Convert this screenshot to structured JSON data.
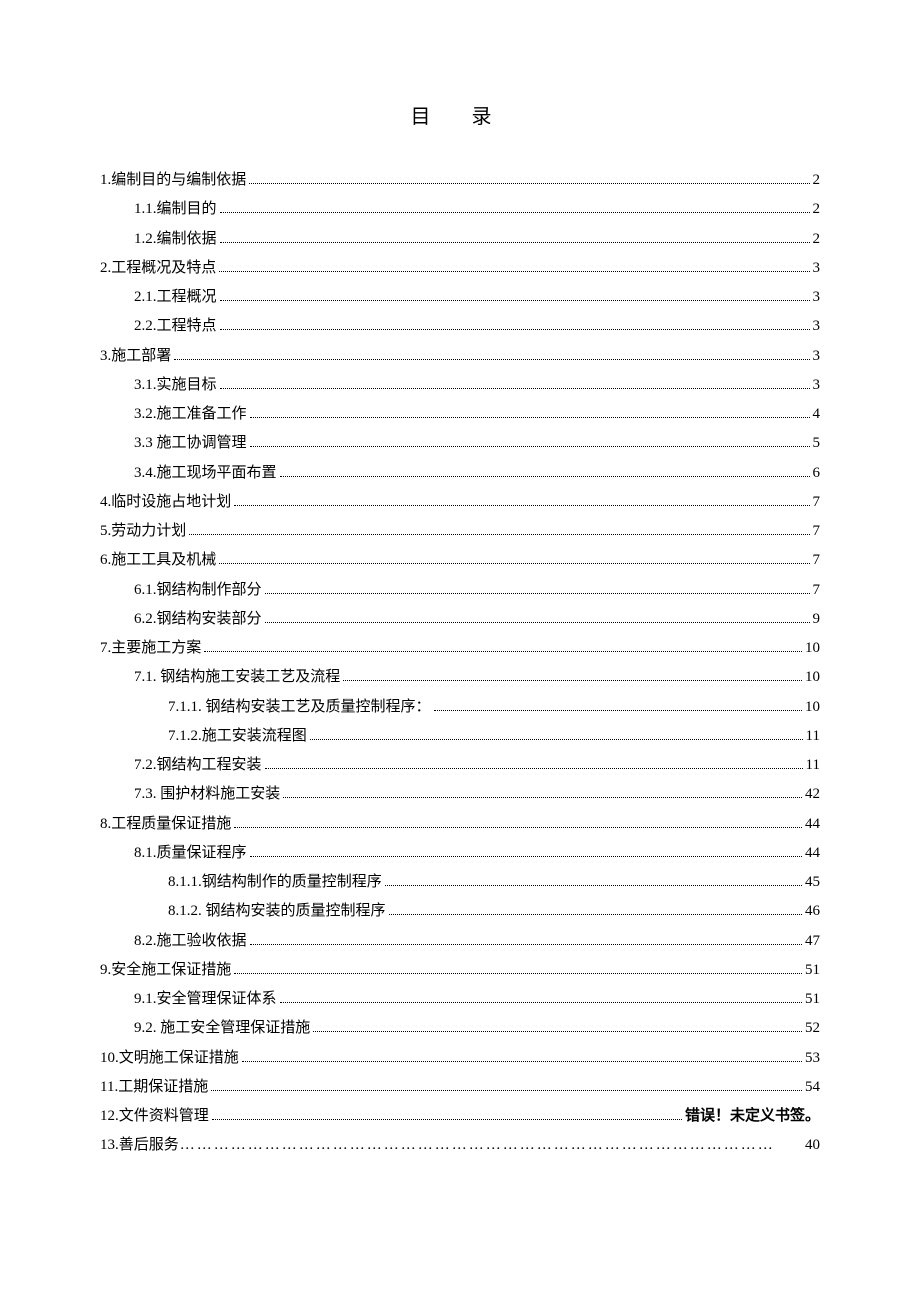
{
  "title": "目 录",
  "toc": [
    {
      "label": "1.编制目的与编制依据",
      "page": "2",
      "level": 1
    },
    {
      "label": "1.1.编制目的",
      "page": "2",
      "level": 2
    },
    {
      "label": "1.2.编制依据",
      "page": "2",
      "level": 2
    },
    {
      "label": "2.工程概况及特点",
      "page": "3",
      "level": 1
    },
    {
      "label": "2.1.工程概况",
      "page": "3",
      "level": 2
    },
    {
      "label": "2.2.工程特点",
      "page": "3",
      "level": 2
    },
    {
      "label": "3.施工部署",
      "page": "3",
      "level": 1
    },
    {
      "label": "3.1.实施目标",
      "page": "3",
      "level": 2
    },
    {
      "label": "3.2.施工准备工作",
      "page": "4",
      "level": 2
    },
    {
      "label": "3.3 施工协调管理",
      "page": "5",
      "level": 2
    },
    {
      "label": "3.4.施工现场平面布置",
      "page": "6",
      "level": 2
    },
    {
      "label": "4.临时设施占地计划",
      "page": "7",
      "level": 1
    },
    {
      "label": "5.劳动力计划",
      "page": "7",
      "level": 1
    },
    {
      "label": "6.施工工具及机械",
      "page": "7",
      "level": 1
    },
    {
      "label": "6.1.钢结构制作部分",
      "page": "7",
      "level": 2
    },
    {
      "label": "6.2.钢结构安装部分",
      "page": "9",
      "level": 2
    },
    {
      "label": "7.主要施工方案",
      "page": "10",
      "level": 1
    },
    {
      "label": "7.1.  钢结构施工安装工艺及流程",
      "page": "10",
      "level": 2
    },
    {
      "label": "7.1.1.  钢结构安装工艺及质量控制程序：",
      "page": "10",
      "level": 3
    },
    {
      "label": "7.1.2.施工安装流程图",
      "page": "11",
      "level": 3
    },
    {
      "label": "7.2.钢结构工程安装",
      "page": "11",
      "level": 2
    },
    {
      "label": "7.3.  围护材料施工安装",
      "page": "42",
      "level": 2
    },
    {
      "label": "8.工程质量保证措施",
      "page": "44",
      "level": 1
    },
    {
      "label": "8.1.质量保证程序",
      "page": "44",
      "level": 2
    },
    {
      "label": "8.1.1.钢结构制作的质量控制程序",
      "page": "45",
      "level": 3
    },
    {
      "label": "8.1.2.  钢结构安装的质量控制程序",
      "page": "46",
      "level": 3
    },
    {
      "label": "8.2.施工验收依据",
      "page": "47",
      "level": 2
    },
    {
      "label": "9.安全施工保证措施",
      "page": "51",
      "level": 1
    },
    {
      "label": "9.1.安全管理保证体系",
      "page": "51",
      "level": 2
    },
    {
      "label": "9.2.  施工安全管理保证措施",
      "page": "52",
      "level": 2
    },
    {
      "label": "10.文明施工保证措施",
      "page": "53",
      "level": 1
    },
    {
      "label": "11.工期保证措施",
      "page": "54",
      "level": 1
    }
  ],
  "toc_special": {
    "label": "12.文件资料管理",
    "page_text": "错误！未定义书签。"
  },
  "toc_last": {
    "label": "13.善后服务",
    "page": "40",
    "leader": "……………………………………………………………………………………………"
  }
}
